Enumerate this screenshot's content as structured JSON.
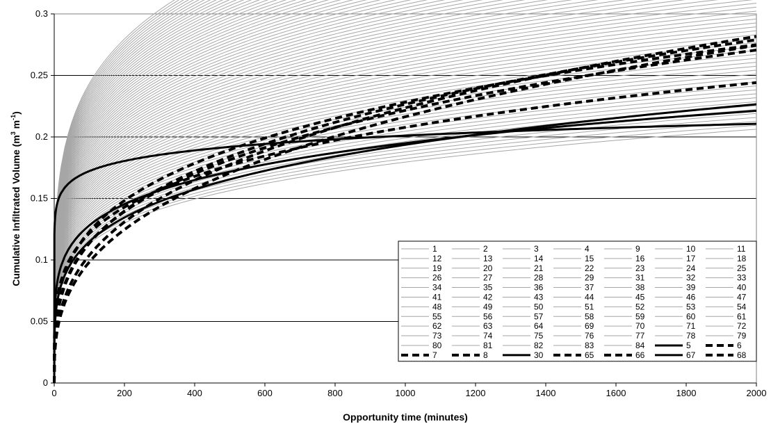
{
  "chart_data": {
    "type": "line",
    "title": "",
    "xlabel": "Opportunity time (minutes)",
    "ylabel_parts": {
      "pre": "Cumulative Infiltrated Volume (m",
      "sup1": "3",
      "mid": " m",
      "sup2": "-1",
      "post": ")"
    },
    "xlim": [
      0,
      2000
    ],
    "ylim": [
      0,
      0.3
    ],
    "xticks": [
      "0",
      "200",
      "400",
      "600",
      "800",
      "1000",
      "1200",
      "1400",
      "1600",
      "1800",
      "2000"
    ],
    "yticks": [
      "0",
      "0.05",
      "0.1",
      "0.15",
      "0.2",
      "0.25",
      "0.3"
    ],
    "grid": "horizontal",
    "legend_placement": "bottom-right",
    "colors": {
      "background_series": "#a6a6a6",
      "highlight_series": "#000000",
      "grid": "#000000"
    },
    "model": "V = k * t^a",
    "series": [
      {
        "name": "1",
        "style": "grey",
        "k": 0.0451,
        "a": 0.2
      },
      {
        "name": "2",
        "style": "grey",
        "k": 0.0458,
        "a": 0.2
      },
      {
        "name": "3",
        "style": "grey",
        "k": 0.0465,
        "a": 0.2
      },
      {
        "name": "4",
        "style": "grey",
        "k": 0.0472,
        "a": 0.2
      },
      {
        "name": "9",
        "style": "grey",
        "k": 0.0479,
        "a": 0.2
      },
      {
        "name": "10",
        "style": "grey",
        "k": 0.0486,
        "a": 0.2
      },
      {
        "name": "11",
        "style": "grey",
        "k": 0.0493,
        "a": 0.2
      },
      {
        "name": "12",
        "style": "grey",
        "k": 0.05,
        "a": 0.2
      },
      {
        "name": "13",
        "style": "grey",
        "k": 0.0507,
        "a": 0.2
      },
      {
        "name": "14",
        "style": "grey",
        "k": 0.0514,
        "a": 0.2
      },
      {
        "name": "15",
        "style": "grey",
        "k": 0.0521,
        "a": 0.2
      },
      {
        "name": "16",
        "style": "grey",
        "k": 0.0528,
        "a": 0.2
      },
      {
        "name": "17",
        "style": "grey",
        "k": 0.0535,
        "a": 0.2
      },
      {
        "name": "18",
        "style": "grey",
        "k": 0.0542,
        "a": 0.2
      },
      {
        "name": "19",
        "style": "grey",
        "k": 0.0549,
        "a": 0.2
      },
      {
        "name": "20",
        "style": "grey",
        "k": 0.0556,
        "a": 0.2
      },
      {
        "name": "21",
        "style": "grey",
        "k": 0.0563,
        "a": 0.2
      },
      {
        "name": "22",
        "style": "grey",
        "k": 0.057,
        "a": 0.2
      },
      {
        "name": "23",
        "style": "grey",
        "k": 0.0577,
        "a": 0.2
      },
      {
        "name": "24",
        "style": "grey",
        "k": 0.0584,
        "a": 0.2
      },
      {
        "name": "25",
        "style": "grey",
        "k": 0.0591,
        "a": 0.2
      },
      {
        "name": "26",
        "style": "grey",
        "k": 0.0598,
        "a": 0.2
      },
      {
        "name": "27",
        "style": "grey",
        "k": 0.0605,
        "a": 0.2
      },
      {
        "name": "28",
        "style": "grey",
        "k": 0.0612,
        "a": 0.2
      },
      {
        "name": "29",
        "style": "grey",
        "k": 0.0619,
        "a": 0.2
      },
      {
        "name": "31",
        "style": "grey",
        "k": 0.0626,
        "a": 0.2
      },
      {
        "name": "32",
        "style": "grey",
        "k": 0.0633,
        "a": 0.2
      },
      {
        "name": "33",
        "style": "grey",
        "k": 0.064,
        "a": 0.2
      },
      {
        "name": "34",
        "style": "grey",
        "k": 0.0647,
        "a": 0.2
      },
      {
        "name": "35",
        "style": "grey",
        "k": 0.0654,
        "a": 0.2
      },
      {
        "name": "36",
        "style": "grey",
        "k": 0.0661,
        "a": 0.2
      },
      {
        "name": "37",
        "style": "grey",
        "k": 0.0668,
        "a": 0.2
      },
      {
        "name": "38",
        "style": "grey",
        "k": 0.0675,
        "a": 0.2
      },
      {
        "name": "39",
        "style": "grey",
        "k": 0.0682,
        "a": 0.2
      },
      {
        "name": "40",
        "style": "grey",
        "k": 0.0689,
        "a": 0.2
      },
      {
        "name": "41",
        "style": "grey",
        "k": 0.0696,
        "a": 0.2
      },
      {
        "name": "42",
        "style": "grey",
        "k": 0.0703,
        "a": 0.2
      },
      {
        "name": "43",
        "style": "grey",
        "k": 0.071,
        "a": 0.2
      },
      {
        "name": "44",
        "style": "grey",
        "k": 0.0717,
        "a": 0.2
      },
      {
        "name": "45",
        "style": "grey",
        "k": 0.0724,
        "a": 0.2
      },
      {
        "name": "46",
        "style": "grey",
        "k": 0.0731,
        "a": 0.2
      },
      {
        "name": "47",
        "style": "grey",
        "k": 0.0738,
        "a": 0.2
      },
      {
        "name": "48",
        "style": "grey",
        "k": 0.0745,
        "a": 0.2
      },
      {
        "name": "49",
        "style": "grey",
        "k": 0.0752,
        "a": 0.2
      },
      {
        "name": "50",
        "style": "grey",
        "k": 0.0759,
        "a": 0.2
      },
      {
        "name": "51",
        "style": "grey",
        "k": 0.0766,
        "a": 0.2
      },
      {
        "name": "52",
        "style": "grey",
        "k": 0.0773,
        "a": 0.2
      },
      {
        "name": "53",
        "style": "grey",
        "k": 0.078,
        "a": 0.2
      },
      {
        "name": "54",
        "style": "grey",
        "k": 0.0787,
        "a": 0.2
      },
      {
        "name": "55",
        "style": "grey",
        "k": 0.0794,
        "a": 0.2
      },
      {
        "name": "56",
        "style": "grey",
        "k": 0.0801,
        "a": 0.2
      },
      {
        "name": "57",
        "style": "grey",
        "k": 0.0808,
        "a": 0.2
      },
      {
        "name": "58",
        "style": "grey",
        "k": 0.0815,
        "a": 0.2
      },
      {
        "name": "59",
        "style": "grey",
        "k": 0.0822,
        "a": 0.2
      },
      {
        "name": "60",
        "style": "grey",
        "k": 0.0829,
        "a": 0.2
      },
      {
        "name": "61",
        "style": "grey",
        "k": 0.0836,
        "a": 0.2
      },
      {
        "name": "62",
        "style": "grey",
        "k": 0.0843,
        "a": 0.2
      },
      {
        "name": "63",
        "style": "grey",
        "k": 0.085,
        "a": 0.2
      },
      {
        "name": "64",
        "style": "grey",
        "k": 0.0857,
        "a": 0.2
      },
      {
        "name": "69",
        "style": "grey",
        "k": 0.0864,
        "a": 0.2
      },
      {
        "name": "70",
        "style": "grey",
        "k": 0.0871,
        "a": 0.2
      },
      {
        "name": "71",
        "style": "grey",
        "k": 0.0878,
        "a": 0.2
      },
      {
        "name": "72",
        "style": "grey",
        "k": 0.0885,
        "a": 0.2
      },
      {
        "name": "73",
        "style": "grey",
        "k": 0.0892,
        "a": 0.2
      },
      {
        "name": "74",
        "style": "grey",
        "k": 0.0899,
        "a": 0.2
      },
      {
        "name": "75",
        "style": "grey",
        "k": 0.0906,
        "a": 0.2
      },
      {
        "name": "76",
        "style": "grey",
        "k": 0.0913,
        "a": 0.2
      },
      {
        "name": "77",
        "style": "grey",
        "k": 0.092,
        "a": 0.2
      },
      {
        "name": "78",
        "style": "grey",
        "k": 0.0927,
        "a": 0.2
      },
      {
        "name": "79",
        "style": "grey",
        "k": 0.0934,
        "a": 0.2
      },
      {
        "name": "80",
        "style": "grey",
        "k": 0.0941,
        "a": 0.2
      },
      {
        "name": "81",
        "style": "grey",
        "k": 0.0948,
        "a": 0.2
      },
      {
        "name": "82",
        "style": "grey",
        "k": 0.0955,
        "a": 0.2
      },
      {
        "name": "83",
        "style": "grey",
        "k": 0.0962,
        "a": 0.2
      },
      {
        "name": "84",
        "style": "grey",
        "k": 0.0969,
        "a": 0.2
      },
      {
        "name": "5",
        "style": "solid",
        "k": 0.1264,
        "a": 0.0672
      },
      {
        "name": "6",
        "style": "dash",
        "k": 0.0358,
        "a": 0.2682
      },
      {
        "name": "7",
        "style": "dash",
        "k": 0.0203,
        "a": 0.3426
      },
      {
        "name": "8",
        "style": "dash",
        "k": 0.0417,
        "a": 0.2325
      },
      {
        "name": "30",
        "style": "solid",
        "k": 0.0405,
        "a": 0.2265
      },
      {
        "name": "65",
        "style": "dash",
        "k": 0.0285,
        "a": 0.3001
      },
      {
        "name": "66",
        "style": "dash",
        "k": 0.0224,
        "a": 0.3331
      },
      {
        "name": "67",
        "style": "solid",
        "k": 0.0553,
        "a": 0.1824
      },
      {
        "name": "68",
        "style": "dash",
        "k": 0.0302,
        "a": 0.2885
      }
    ]
  }
}
